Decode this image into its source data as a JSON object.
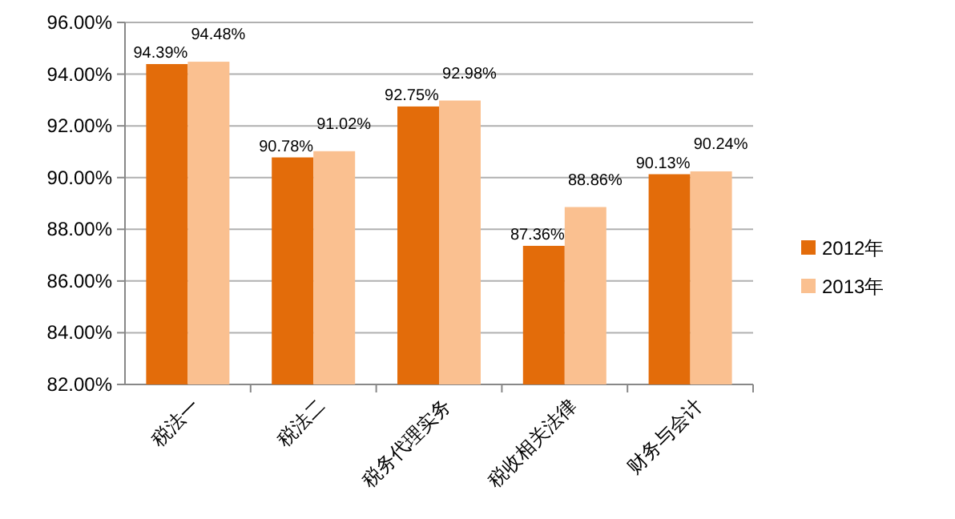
{
  "chart_data": {
    "type": "bar",
    "categories": [
      "税法一",
      "税法二",
      "税务代理实务",
      "税收相关法律",
      "财务与会计"
    ],
    "series": [
      {
        "name": "2012年",
        "color": "#e36c0a",
        "values": [
          94.39,
          90.78,
          92.75,
          87.36,
          90.13
        ],
        "value_labels": [
          "94.39%",
          "90.78%",
          "92.75%",
          "87.36%",
          "90.13%"
        ]
      },
      {
        "name": "2013年",
        "color": "#fac090",
        "values": [
          94.48,
          91.02,
          92.98,
          88.86,
          90.24
        ],
        "value_labels": [
          "94.48%",
          "91.02%",
          "92.98%",
          "88.86%",
          "90.24%"
        ]
      }
    ],
    "ylim": [
      82,
      96
    ],
    "yticks": [
      {
        "value": 82,
        "label": "82.00%"
      },
      {
        "value": 84,
        "label": "84.00%"
      },
      {
        "value": 86,
        "label": "86.00%"
      },
      {
        "value": 88,
        "label": "88.00%"
      },
      {
        "value": 90,
        "label": "90.00%"
      },
      {
        "value": 92,
        "label": "92.00%"
      },
      {
        "value": 94,
        "label": "94.00%"
      },
      {
        "value": 96,
        "label": "96.00%"
      }
    ],
    "grid": "y",
    "legend": "right"
  }
}
